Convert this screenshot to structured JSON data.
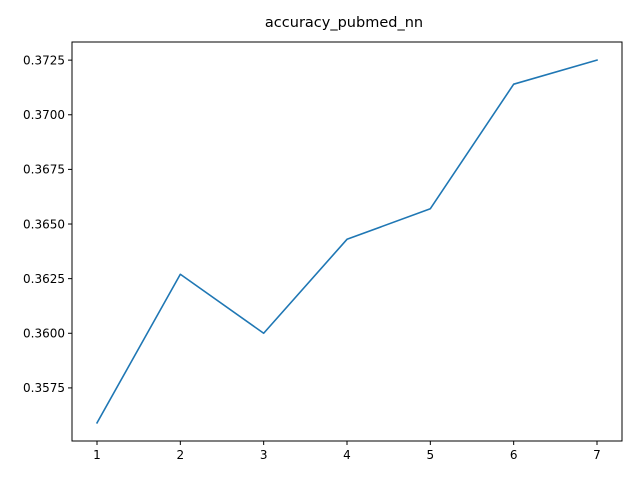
{
  "chart_data": {
    "type": "line",
    "title": "accuracy_pubmed_nn",
    "xlabel": "",
    "ylabel": "",
    "x": [
      1,
      2,
      3,
      4,
      5,
      6,
      7
    ],
    "series": [
      {
        "values": [
          0.3559,
          0.3627,
          0.36,
          0.3643,
          0.3657,
          0.3714,
          0.3725
        ],
        "color": "#1f77b4"
      }
    ],
    "xlim": [
      0.7,
      7.3
    ],
    "ylim": [
      0.35507,
      0.37333
    ],
    "xticks": [
      1,
      2,
      3,
      4,
      5,
      6,
      7
    ],
    "xtick_labels": [
      "1",
      "2",
      "3",
      "4",
      "5",
      "6",
      "7"
    ],
    "yticks": [
      0.3575,
      0.36,
      0.3625,
      0.365,
      0.3675,
      0.37,
      0.3725
    ],
    "ytick_labels": [
      "0.3575",
      "0.3600",
      "0.3625",
      "0.3650",
      "0.3675",
      "0.3700",
      "0.3725"
    ],
    "grid": false,
    "legend": "none"
  }
}
